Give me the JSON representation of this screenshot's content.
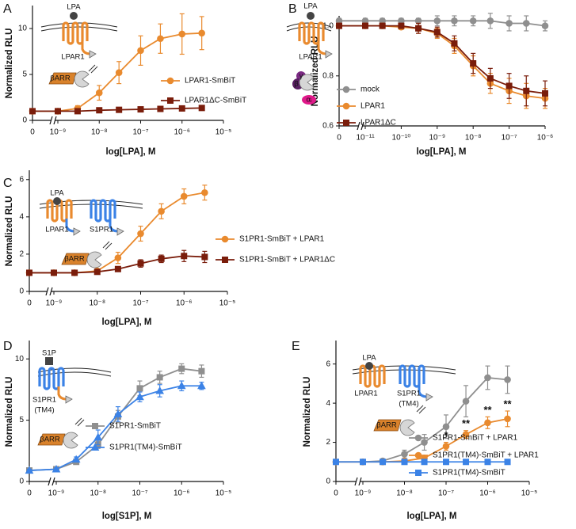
{
  "chart_data": [
    {
      "type": "line",
      "panel": "A",
      "xlabel": "log[LPA], M",
      "ylabel": "Normalized RLU",
      "xscale": "log",
      "x": [
        0,
        1e-09,
        3e-09,
        1e-08,
        3e-08,
        1e-07,
        3e-07,
        1e-06,
        3e-06
      ],
      "xlim": [
        0,
        1e-05
      ],
      "xticks": [
        0,
        {
          "value": 1e-09,
          "label": "10⁻⁹"
        },
        {
          "value": 1e-08,
          "label": "10⁻⁸"
        },
        {
          "value": 1e-07,
          "label": "10⁻⁷"
        },
        {
          "value": 1e-06,
          "label": "10⁻⁶"
        },
        {
          "value": 1e-05,
          "label": "10⁻⁵"
        }
      ],
      "ylim": [
        0,
        12.5
      ],
      "yticks": [
        0,
        5,
        10
      ],
      "series": [
        {
          "name": "LPAR1-SmBiT",
          "color": "#E98A2E",
          "marker": "circle",
          "values": [
            1,
            1,
            1.3,
            3.0,
            5.2,
            7.6,
            8.9,
            9.4,
            9.5
          ],
          "errors": [
            0.1,
            0.1,
            0.3,
            0.8,
            1.2,
            1.6,
            1.6,
            2.2,
            1.8
          ]
        },
        {
          "name": "LPAR1ΔC-SmBiT",
          "color": "#7A1D0B",
          "marker": "square",
          "values": [
            1,
            1,
            1,
            1.1,
            1.15,
            1.2,
            1.25,
            1.3,
            1.35
          ],
          "errors": [
            0.1,
            0.1,
            0.1,
            0.1,
            0.1,
            0.1,
            0.1,
            0.1,
            0.1
          ]
        }
      ],
      "diagram_labels": [
        "LPA",
        "LPAR1",
        "βARR"
      ]
    },
    {
      "type": "line",
      "panel": "B",
      "xlabel": "log[LPA], M",
      "ylabel": "Normalized RLU",
      "xscale": "log",
      "x": [
        0,
        1e-11,
        3e-11,
        1e-10,
        3e-10,
        1e-09,
        3e-09,
        1e-08,
        3e-08,
        1e-07,
        3e-07,
        1e-06
      ],
      "xlim": [
        0,
        1e-06
      ],
      "xticks": [
        0,
        {
          "value": 1e-11,
          "label": "10⁻¹¹"
        },
        {
          "value": 1e-10,
          "label": "10⁻¹⁰"
        },
        {
          "value": 1e-09,
          "label": "10⁻⁹"
        },
        {
          "value": 1e-08,
          "label": "10⁻⁸"
        },
        {
          "value": 1e-07,
          "label": "10⁻⁷"
        },
        {
          "value": 1e-06,
          "label": "10⁻⁶"
        }
      ],
      "ylim": [
        0.6,
        1.04
      ],
      "yticks": [
        0.6,
        0.8,
        {
          "value": 1,
          "label": "1.0"
        }
      ],
      "series": [
        {
          "name": "mock",
          "color": "#8F8F8F",
          "marker": "circle",
          "values": [
            1.02,
            1.02,
            1.02,
            1.02,
            1.02,
            1.02,
            1.02,
            1.02,
            1.02,
            1.01,
            1.01,
            1.0
          ],
          "errors": [
            0.01,
            0.01,
            0.01,
            0.01,
            0.01,
            0.02,
            0.02,
            0.02,
            0.03,
            0.03,
            0.03,
            0.02
          ]
        },
        {
          "name": "LPAR1",
          "color": "#E98A2E",
          "marker": "circle",
          "values": [
            1,
            1,
            1,
            0.995,
            0.99,
            0.97,
            0.92,
            0.84,
            0.77,
            0.74,
            0.72,
            0.71
          ],
          "errors": [
            0.01,
            0.01,
            0.01,
            0.01,
            0.02,
            0.02,
            0.03,
            0.04,
            0.04,
            0.05,
            0.05,
            0.04
          ]
        },
        {
          "name": "LPAR1ΔC",
          "color": "#7A1D0B",
          "marker": "square",
          "values": [
            1,
            1,
            1,
            1,
            0.99,
            0.975,
            0.93,
            0.85,
            0.79,
            0.76,
            0.74,
            0.73
          ],
          "errors": [
            0.01,
            0.01,
            0.01,
            0.01,
            0.02,
            0.02,
            0.03,
            0.04,
            0.04,
            0.05,
            0.06,
            0.05
          ]
        }
      ],
      "diagram_labels": [
        "LPA",
        "LPAR1",
        "γ",
        "β",
        "αᵢ"
      ]
    },
    {
      "type": "line",
      "panel": "C",
      "xlabel": "log[LPA], M",
      "ylabel": "Normalized RLU",
      "xscale": "log",
      "x": [
        0,
        1e-09,
        3e-09,
        1e-08,
        3e-08,
        1e-07,
        3e-07,
        1e-06,
        3e-06
      ],
      "xlim": [
        0,
        1e-05
      ],
      "xticks": [
        0,
        {
          "value": 1e-09,
          "label": "10⁻⁹"
        },
        {
          "value": 1e-08,
          "label": "10⁻⁸"
        },
        {
          "value": 1e-07,
          "label": "10⁻⁷"
        },
        {
          "value": 1e-06,
          "label": "10⁻⁶"
        },
        {
          "value": 1e-05,
          "label": "10⁻⁵"
        }
      ],
      "ylim": [
        0,
        6.5
      ],
      "yticks": [
        0,
        2,
        4,
        6
      ],
      "series": [
        {
          "name": "S1PR1-SmBiT + LPAR1",
          "color": "#E98A2E",
          "marker": "circle",
          "values": [
            1,
            1,
            1,
            1.1,
            1.8,
            3.1,
            4.3,
            5.1,
            5.3
          ],
          "errors": [
            0.05,
            0.05,
            0.1,
            0.1,
            0.3,
            0.4,
            0.4,
            0.4,
            0.4
          ]
        },
        {
          "name": "S1PR1-SmBiT + LPAR1ΔC",
          "color": "#7A1D0B",
          "marker": "square",
          "values": [
            1,
            1,
            1,
            1.05,
            1.2,
            1.5,
            1.75,
            1.9,
            1.85
          ],
          "errors": [
            0.05,
            0.05,
            0.05,
            0.05,
            0.1,
            0.2,
            0.2,
            0.3,
            0.3
          ]
        }
      ],
      "diagram_labels": [
        "LPA",
        "LPAR1",
        "S1PR1",
        "βARR"
      ]
    },
    {
      "type": "line",
      "panel": "D",
      "xlabel": "log[S1P], M",
      "ylabel": "Normalized RLU",
      "xscale": "log",
      "x": [
        0,
        1e-09,
        3e-09,
        1e-08,
        3e-08,
        1e-07,
        3e-07,
        1e-06,
        3e-06
      ],
      "xlim": [
        0,
        1e-05
      ],
      "xticks": [
        0,
        {
          "value": 1e-09,
          "label": "10⁻⁹"
        },
        {
          "value": 1e-08,
          "label": "10⁻⁸"
        },
        {
          "value": 1e-07,
          "label": "10⁻⁷"
        },
        {
          "value": 1e-06,
          "label": "10⁻⁶"
        },
        {
          "value": 1e-05,
          "label": "10⁻⁵"
        }
      ],
      "ylim": [
        0,
        11.5
      ],
      "yticks": [
        0,
        5,
        10
      ],
      "series": [
        {
          "name": "S1PR1-SmBiT",
          "color": "#8F8F8F",
          "marker": "square",
          "values": [
            0.9,
            1,
            1.6,
            3.0,
            5.3,
            7.6,
            8.5,
            9.2,
            9.0
          ],
          "errors": [
            0.1,
            0.1,
            0.2,
            0.3,
            0.5,
            0.6,
            0.5,
            0.4,
            0.5
          ]
        },
        {
          "name": "S1PR1(TM4)-SmBiT",
          "color": "#3B82E6",
          "marker": "triangle",
          "values": [
            0.9,
            1,
            1.8,
            3.6,
            5.5,
            6.9,
            7.4,
            7.8,
            7.8
          ],
          "errors": [
            0.1,
            0.1,
            0.2,
            0.6,
            0.6,
            0.4,
            0.5,
            0.4,
            0.3
          ]
        }
      ],
      "diagram_labels": [
        "S1P",
        "S1PR1",
        "(TM4)",
        "βARR"
      ]
    },
    {
      "type": "line",
      "panel": "E",
      "xlabel": "log[LPA], M",
      "ylabel": "Normalized RLU",
      "xscale": "log",
      "x": [
        0,
        1e-09,
        3e-09,
        1e-08,
        3e-08,
        1e-07,
        3e-07,
        1e-06,
        3e-06
      ],
      "xlim": [
        0,
        1e-05
      ],
      "xticks": [
        0,
        {
          "value": 1e-09,
          "label": "10⁻⁹"
        },
        {
          "value": 1e-08,
          "label": "10⁻⁸"
        },
        {
          "value": 1e-07,
          "label": "10⁻⁷"
        },
        {
          "value": 1e-06,
          "label": "10⁻⁶"
        },
        {
          "value": 1e-05,
          "label": "10⁻⁵"
        }
      ],
      "ylim": [
        0,
        7.2
      ],
      "yticks": [
        0,
        2,
        4,
        6
      ],
      "series": [
        {
          "name": "S1PR1-SmBiT + LPAR1",
          "color": "#8F8F8F",
          "marker": "circle",
          "values": [
            1,
            1,
            1.05,
            1.4,
            2.0,
            2.8,
            4.1,
            5.3,
            5.2
          ],
          "errors": [
            0.05,
            0.05,
            0.1,
            0.2,
            0.4,
            0.6,
            0.8,
            0.6,
            0.7
          ]
        },
        {
          "name": "S1PR1(TM4)-SmBiT + LPAR1",
          "color": "#E98A2E",
          "marker": "circle",
          "values": [
            1,
            1,
            1,
            1.05,
            1.2,
            1.8,
            2.4,
            3.0,
            3.2
          ],
          "errors": [
            0.05,
            0.05,
            0.05,
            0.1,
            0.1,
            0.2,
            0.2,
            0.3,
            0.4
          ]
        },
        {
          "name": "S1PR1(TM4)-SmBiT",
          "color": "#3B82E6",
          "marker": "square",
          "values": [
            1,
            1,
            1,
            1,
            1,
            1,
            1,
            1,
            1
          ],
          "errors": [
            0.05,
            0.05,
            0.05,
            0.05,
            0.05,
            0.05,
            0.05,
            0.05,
            0.05
          ]
        }
      ],
      "annotations": [
        "*",
        "**",
        "**",
        "**"
      ],
      "diagram_labels": [
        "LPA",
        "LPAR1",
        "S1PR1",
        "(TM4)",
        "βARR"
      ]
    }
  ]
}
